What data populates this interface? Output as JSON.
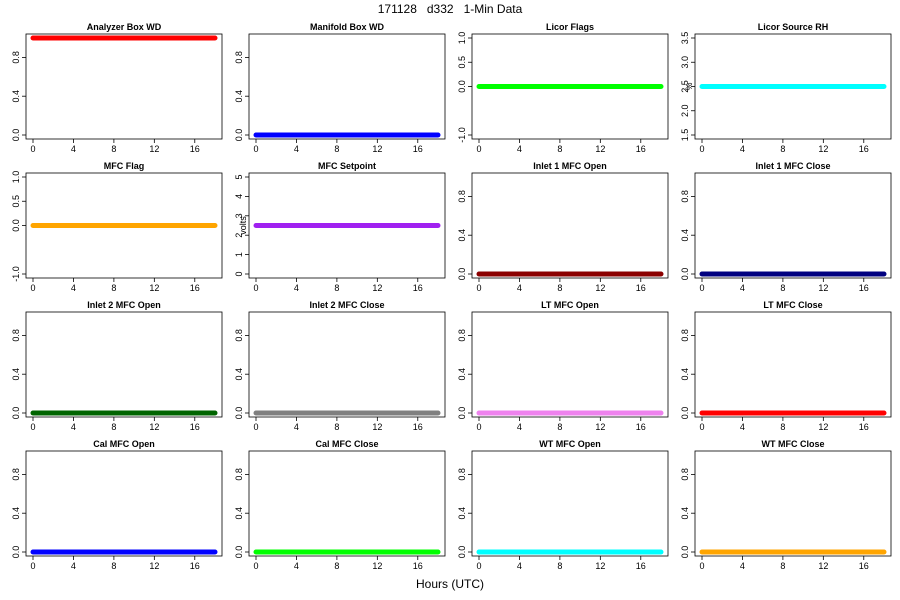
{
  "page": {
    "title": "171128   d332   1-Min Data",
    "xlabel": "Hours (UTC)"
  },
  "chart_data": [
    {
      "type": "line",
      "title": "Analyzer Box WD",
      "ylabel": "",
      "xlim": [
        0,
        18
      ],
      "ylim": [
        0,
        1
      ],
      "x_ticks": [
        0,
        4,
        8,
        12,
        16
      ],
      "y_ticks": [
        0,
        0.4,
        0.8
      ],
      "y_tick_labels": [
        "0.0",
        "0.4",
        "0.8"
      ],
      "color": "#ff0000",
      "series": [
        {
          "x": [
            0,
            18
          ],
          "y": [
            1,
            1
          ]
        }
      ]
    },
    {
      "type": "line",
      "title": "Manifold Box WD",
      "ylabel": "",
      "xlim": [
        0,
        18
      ],
      "ylim": [
        0,
        1
      ],
      "x_ticks": [
        0,
        4,
        8,
        12,
        16
      ],
      "y_ticks": [
        0,
        0.4,
        0.8
      ],
      "y_tick_labels": [
        "0.0",
        "0.4",
        "0.8"
      ],
      "color": "#0000ff",
      "series": [
        {
          "x": [
            0,
            18
          ],
          "y": [
            0,
            0
          ]
        }
      ]
    },
    {
      "type": "line",
      "title": "Licor Flags",
      "ylabel": "",
      "xlim": [
        0,
        18
      ],
      "ylim": [
        -1,
        1
      ],
      "x_ticks": [
        0,
        4,
        8,
        12,
        16
      ],
      "y_ticks": [
        -1,
        0,
        0.5,
        1
      ],
      "y_tick_labels": [
        "-1.0",
        "0.0",
        "0.5",
        "1.0"
      ],
      "color": "#00ff00",
      "series": [
        {
          "x": [
            0,
            18
          ],
          "y": [
            0,
            0
          ]
        }
      ]
    },
    {
      "type": "line",
      "title": "Licor Source RH",
      "ylabel": "%",
      "xlim": [
        0,
        18
      ],
      "ylim": [
        1.5,
        3.5
      ],
      "x_ticks": [
        0,
        4,
        8,
        12,
        16
      ],
      "y_ticks": [
        1.5,
        2,
        2.5,
        3,
        3.5
      ],
      "y_tick_labels": [
        "1.5",
        "2.0",
        "2.5",
        "3.0",
        "3.5"
      ],
      "color": "#00ffff",
      "series": [
        {
          "x": [
            0,
            18
          ],
          "y": [
            2.5,
            2.5
          ]
        }
      ]
    },
    {
      "type": "line",
      "title": "MFC Flag",
      "ylabel": "",
      "xlim": [
        0,
        18
      ],
      "ylim": [
        -1,
        1
      ],
      "x_ticks": [
        0,
        4,
        8,
        12,
        16
      ],
      "y_ticks": [
        -1,
        0,
        0.5,
        1
      ],
      "y_tick_labels": [
        "-1.0",
        "0.0",
        "0.5",
        "1.0"
      ],
      "color": "#ffa500",
      "series": [
        {
          "x": [
            0,
            18
          ],
          "y": [
            0,
            0
          ]
        }
      ]
    },
    {
      "type": "line",
      "title": "MFC Setpoint",
      "ylabel": "volts",
      "xlim": [
        0,
        18
      ],
      "ylim": [
        0,
        5
      ],
      "x_ticks": [
        0,
        4,
        8,
        12,
        16
      ],
      "y_ticks": [
        0,
        1,
        2,
        3,
        4,
        5
      ],
      "y_tick_labels": [
        "0",
        "1",
        "2",
        "3",
        "4",
        "5"
      ],
      "color": "#a020f0",
      "series": [
        {
          "x": [
            0,
            18
          ],
          "y": [
            2.5,
            2.5
          ]
        }
      ]
    },
    {
      "type": "line",
      "title": "Inlet 1 MFC Open",
      "ylabel": "",
      "xlim": [
        0,
        18
      ],
      "ylim": [
        0,
        1
      ],
      "x_ticks": [
        0,
        4,
        8,
        12,
        16
      ],
      "y_ticks": [
        0,
        0.4,
        0.8
      ],
      "y_tick_labels": [
        "0.0",
        "0.4",
        "0.8"
      ],
      "color": "#8b0000",
      "series": [
        {
          "x": [
            0,
            18
          ],
          "y": [
            0,
            0
          ]
        }
      ]
    },
    {
      "type": "line",
      "title": "Inlet 1 MFC Close",
      "ylabel": "",
      "xlim": [
        0,
        18
      ],
      "ylim": [
        0,
        1
      ],
      "x_ticks": [
        0,
        4,
        8,
        12,
        16
      ],
      "y_ticks": [
        0,
        0.4,
        0.8
      ],
      "y_tick_labels": [
        "0.0",
        "0.4",
        "0.8"
      ],
      "color": "#000080",
      "series": [
        {
          "x": [
            0,
            18
          ],
          "y": [
            0,
            0
          ]
        }
      ]
    },
    {
      "type": "line",
      "title": "Inlet 2 MFC Open",
      "ylabel": "",
      "xlim": [
        0,
        18
      ],
      "ylim": [
        0,
        1
      ],
      "x_ticks": [
        0,
        4,
        8,
        12,
        16
      ],
      "y_ticks": [
        0,
        0.4,
        0.8
      ],
      "y_tick_labels": [
        "0.0",
        "0.4",
        "0.8"
      ],
      "color": "#006400",
      "series": [
        {
          "x": [
            0,
            18
          ],
          "y": [
            0,
            0
          ]
        }
      ]
    },
    {
      "type": "line",
      "title": "Inlet 2 MFC Close",
      "ylabel": "",
      "xlim": [
        0,
        18
      ],
      "ylim": [
        0,
        1
      ],
      "x_ticks": [
        0,
        4,
        8,
        12,
        16
      ],
      "y_ticks": [
        0,
        0.4,
        0.8
      ],
      "y_tick_labels": [
        "0.0",
        "0.4",
        "0.8"
      ],
      "color": "#808080",
      "series": [
        {
          "x": [
            0,
            18
          ],
          "y": [
            0,
            0
          ]
        }
      ]
    },
    {
      "type": "line",
      "title": "LT MFC Open",
      "ylabel": "",
      "xlim": [
        0,
        18
      ],
      "ylim": [
        0,
        1
      ],
      "x_ticks": [
        0,
        4,
        8,
        12,
        16
      ],
      "y_ticks": [
        0,
        0.4,
        0.8
      ],
      "y_tick_labels": [
        "0.0",
        "0.4",
        "0.8"
      ],
      "color": "#ee82ee",
      "series": [
        {
          "x": [
            0,
            18
          ],
          "y": [
            0,
            0
          ]
        }
      ]
    },
    {
      "type": "line",
      "title": "LT MFC Close",
      "ylabel": "",
      "xlim": [
        0,
        18
      ],
      "ylim": [
        0,
        1
      ],
      "x_ticks": [
        0,
        4,
        8,
        12,
        16
      ],
      "y_ticks": [
        0,
        0.4,
        0.8
      ],
      "y_tick_labels": [
        "0.0",
        "0.4",
        "0.8"
      ],
      "color": "#ff0000",
      "series": [
        {
          "x": [
            0,
            18
          ],
          "y": [
            0,
            0
          ]
        }
      ]
    },
    {
      "type": "line",
      "title": "Cal MFC Open",
      "ylabel": "",
      "xlim": [
        0,
        18
      ],
      "ylim": [
        0,
        1
      ],
      "x_ticks": [
        0,
        4,
        8,
        12,
        16
      ],
      "y_ticks": [
        0,
        0.4,
        0.8
      ],
      "y_tick_labels": [
        "0.0",
        "0.4",
        "0.8"
      ],
      "color": "#0000ff",
      "series": [
        {
          "x": [
            0,
            18
          ],
          "y": [
            0,
            0
          ]
        }
      ]
    },
    {
      "type": "line",
      "title": "Cal MFC Close",
      "ylabel": "",
      "xlim": [
        0,
        18
      ],
      "ylim": [
        0,
        1
      ],
      "x_ticks": [
        0,
        4,
        8,
        12,
        16
      ],
      "y_ticks": [
        0,
        0.4,
        0.8
      ],
      "y_tick_labels": [
        "0.0",
        "0.4",
        "0.8"
      ],
      "color": "#00ff00",
      "series": [
        {
          "x": [
            0,
            18
          ],
          "y": [
            0,
            0
          ]
        }
      ]
    },
    {
      "type": "line",
      "title": "WT MFC Open",
      "ylabel": "",
      "xlim": [
        0,
        18
      ],
      "ylim": [
        0,
        1
      ],
      "x_ticks": [
        0,
        4,
        8,
        12,
        16
      ],
      "y_ticks": [
        0,
        0.4,
        0.8
      ],
      "y_tick_labels": [
        "0.0",
        "0.4",
        "0.8"
      ],
      "color": "#00ffff",
      "series": [
        {
          "x": [
            0,
            18
          ],
          "y": [
            0,
            0
          ]
        }
      ]
    },
    {
      "type": "line",
      "title": "WT MFC Close",
      "ylabel": "",
      "xlim": [
        0,
        18
      ],
      "ylim": [
        0,
        1
      ],
      "x_ticks": [
        0,
        4,
        8,
        12,
        16
      ],
      "y_ticks": [
        0,
        0.4,
        0.8
      ],
      "y_tick_labels": [
        "0.0",
        "0.4",
        "0.8"
      ],
      "color": "#ffa500",
      "series": [
        {
          "x": [
            0,
            18
          ],
          "y": [
            0,
            0
          ]
        }
      ]
    }
  ]
}
